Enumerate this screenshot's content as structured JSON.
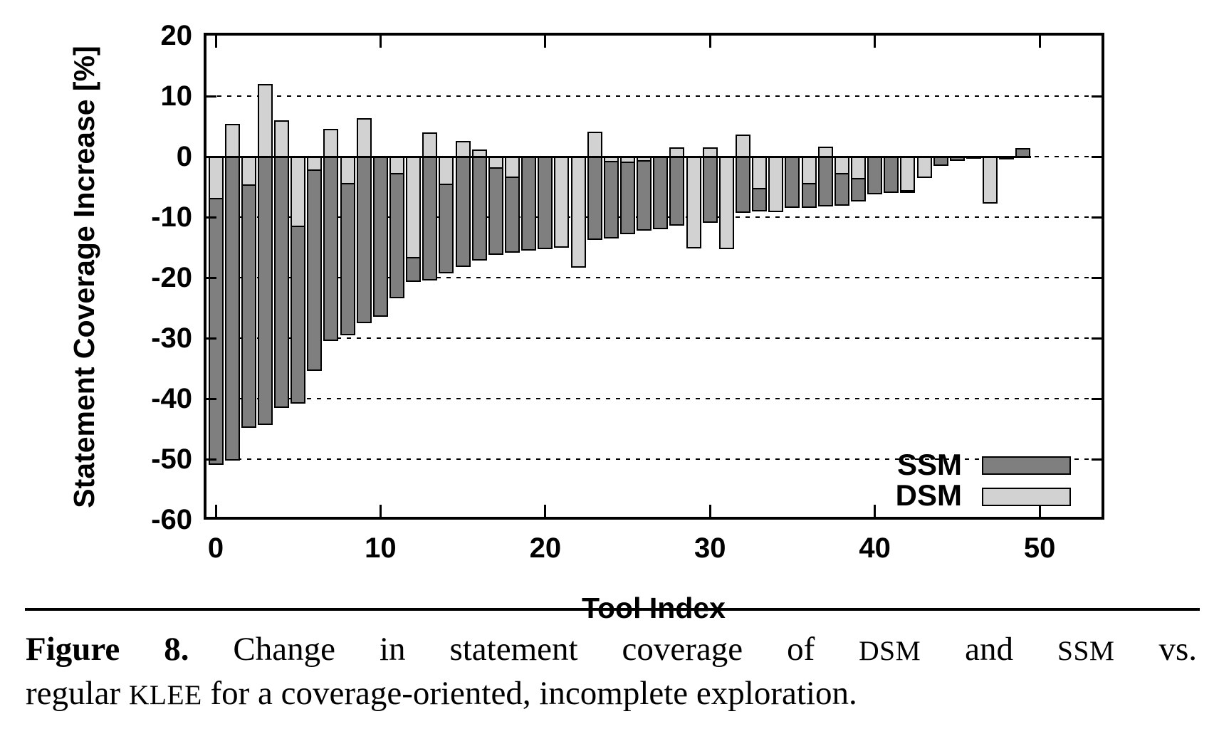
{
  "chart_data": {
    "type": "bar",
    "title": "",
    "xlabel": "Tool Index",
    "ylabel": "Statement Coverage Increase [%]",
    "xlim": [
      -1,
      54
    ],
    "ylim": [
      -60,
      20
    ],
    "xticks": [
      0,
      10,
      20,
      30,
      40,
      50
    ],
    "yticks": [
      20,
      10,
      0,
      -10,
      -20,
      -30,
      -40,
      -50,
      -60
    ],
    "grid": "horizontal dotted black lines every 10 units from 10 down to -50, plus dotted zero line",
    "legend_position": "inside bottom-right",
    "bar_style": "full-slot-width bars; DSM bar drawn in front of SSM bar at the same x position",
    "categories": [
      0,
      1,
      2,
      3,
      4,
      5,
      6,
      7,
      8,
      9,
      10,
      11,
      12,
      13,
      14,
      15,
      16,
      17,
      18,
      19,
      20,
      21,
      22,
      23,
      24,
      25,
      26,
      27,
      28,
      29,
      30,
      31,
      32,
      33,
      34,
      35,
      36,
      37,
      38,
      39,
      40,
      41,
      42,
      43,
      44,
      45,
      46,
      47,
      48,
      49
    ],
    "series": [
      {
        "name": "SSM",
        "color": "#7f7f7f",
        "values": [
          -50.8,
          -50.1,
          -44.6,
          -44.2,
          -41.4,
          -40.7,
          -35.2,
          -30.3,
          -29.4,
          -27.4,
          -26.3,
          -23.2,
          -20.5,
          -20.3,
          -19.1,
          -18.1,
          -17.0,
          -16.0,
          -15.7,
          -15.4,
          -15.1,
          -14.9,
          -14.4,
          -13.6,
          -13.3,
          -12.7,
          -12.0,
          -11.8,
          -11.2,
          -11.0,
          -10.8,
          -10.0,
          -9.1,
          -8.9,
          -8.6,
          -8.3,
          -8.3,
          -8.1,
          -7.9,
          -7.2,
          -6.1,
          -5.8,
          -5.8,
          -3.4,
          -1.3,
          -0.5,
          -0.1,
          -0.2,
          -0.3,
          1.2
        ]
      },
      {
        "name": "DSM",
        "color": "#d2d2d2",
        "values": [
          -6.9,
          5.2,
          -4.7,
          11.8,
          5.8,
          -11.5,
          -2.2,
          4.4,
          -4.4,
          6.2,
          0,
          -2.8,
          -16.6,
          3.8,
          -4.5,
          2.4,
          1.0,
          -1.8,
          -3.4,
          0,
          0,
          -14.9,
          -18.2,
          3.9,
          -0.8,
          -0.9,
          -0.7,
          0,
          1.4,
          -15.0,
          1.4,
          -15.1,
          3.5,
          -5.2,
          -9.0,
          0,
          -4.4,
          1.5,
          -2.8,
          -3.6,
          0,
          0,
          -5.6,
          -3.4,
          0,
          0,
          0,
          -7.6,
          0,
          0
        ]
      }
    ],
    "ssm_hidden_behind_dsm_indices": [
      21,
      22,
      29,
      31,
      34,
      43,
      47
    ]
  },
  "axes": {
    "xlabel": "Tool Index",
    "ylabel": "Statement Coverage Increase [%]"
  },
  "legend": {
    "entries": [
      {
        "label": "SSM",
        "color": "#7f7f7f"
      },
      {
        "label": "DSM",
        "color": "#d2d2d2"
      }
    ]
  },
  "caption": {
    "line1": [
      {
        "text": "Figure 8.",
        "style": "bold"
      },
      {
        "text": " Change in statement coverage of ",
        "style": "normal"
      },
      {
        "text": "DSM",
        "style": "caps"
      },
      {
        "text": " and ",
        "style": "normal"
      },
      {
        "text": "SSM",
        "style": "caps"
      },
      {
        "text": " vs.",
        "style": "normal"
      }
    ],
    "line2": [
      {
        "text": "regular ",
        "style": "normal"
      },
      {
        "text": "KLEE",
        "style": "caps"
      },
      {
        "text": " for a coverage-oriented, incomplete exploration.",
        "style": "normal"
      }
    ]
  },
  "colors": {
    "ssm": "#7f7f7f",
    "dsm": "#d2d2d2",
    "axis": "#000000",
    "background": "#ffffff"
  }
}
